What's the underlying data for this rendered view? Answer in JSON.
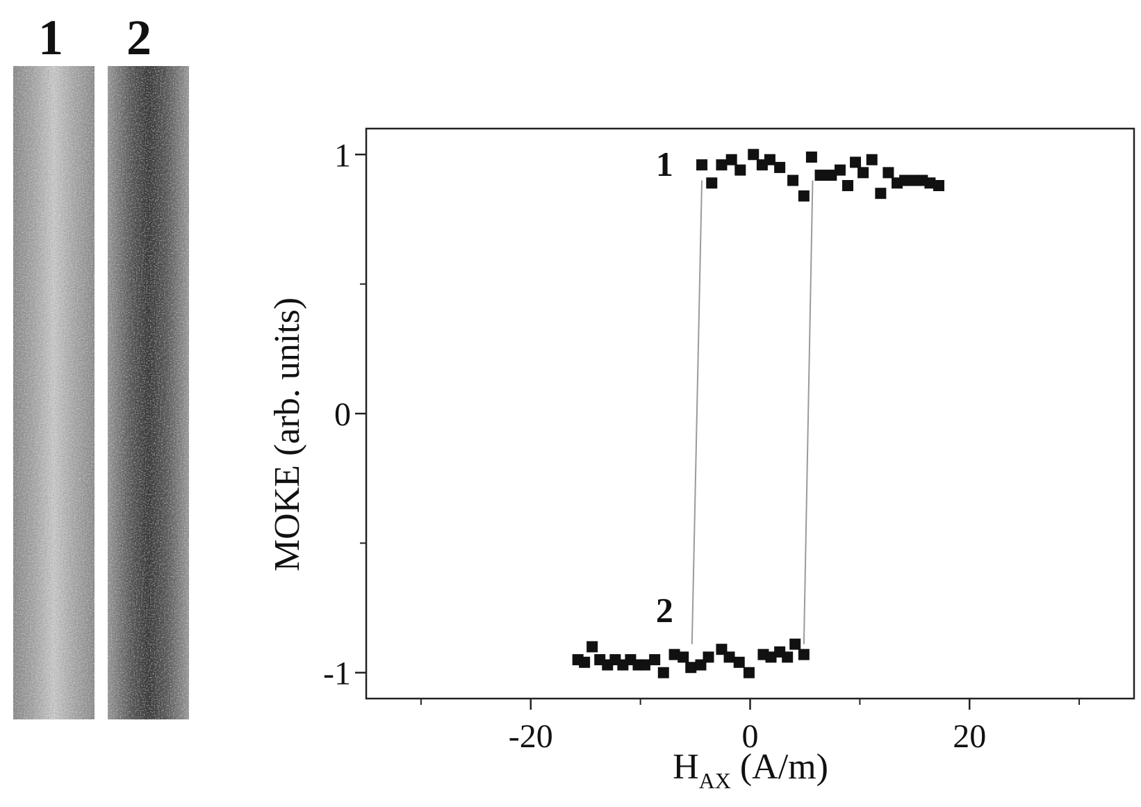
{
  "panel": {
    "strip_labels": [
      "1",
      "2"
    ]
  },
  "chart_data": {
    "type": "scatter",
    "xlabel": "H",
    "xlabel_sub": "AX",
    "xlabel_unit": " (A/m)",
    "ylabel": "MOKE (arb. units)",
    "xlim": [
      -35,
      35
    ],
    "ylim": [
      -1.1,
      1.1
    ],
    "xticks": [
      -20,
      0,
      20
    ],
    "yticks": [
      -1,
      0,
      1
    ],
    "xticks_minor": [
      -30,
      -10,
      10,
      30
    ],
    "yticks_minor": [
      -0.5,
      0.5
    ],
    "grid": false,
    "annotations": [
      {
        "text": "1",
        "x": -7.8,
        "y": 0.96
      },
      {
        "text": "2",
        "x": -7.8,
        "y": -0.76
      }
    ],
    "colors": {
      "marker": "#111111",
      "line": "#9a9a9a",
      "axis": "#222222"
    },
    "series": [
      {
        "x": [
          -4.4,
          -3.5,
          -2.6,
          -1.7,
          -0.9,
          0.3,
          1.1,
          1.8,
          2.7,
          3.9,
          4.9,
          5.6,
          6.4,
          7.4,
          8.2,
          8.9,
          9.6,
          10.3,
          11.1,
          11.9,
          12.6,
          13.4,
          14.1,
          14.9,
          15.7,
          16.4,
          17.2
        ],
        "y": [
          0.96,
          0.89,
          0.96,
          0.98,
          0.94,
          1.0,
          0.96,
          0.98,
          0.95,
          0.9,
          0.84,
          0.99,
          0.92,
          0.92,
          0.94,
          0.88,
          0.97,
          0.93,
          0.98,
          0.85,
          0.93,
          0.89,
          0.9,
          0.9,
          0.9,
          0.89,
          0.88
        ]
      },
      {
        "x": [
          -15.7,
          -15.1,
          -14.4,
          -13.7,
          -13.0,
          -12.3,
          -11.6,
          -10.9,
          -10.2,
          -9.6,
          -8.7,
          -7.9,
          -6.9,
          -6.1,
          -5.4,
          -4.5,
          -3.8,
          -2.6,
          -1.9,
          -1.0,
          -0.1,
          1.2,
          1.9,
          2.7,
          3.4,
          4.1,
          4.9
        ],
        "y": [
          -0.95,
          -0.96,
          -0.9,
          -0.95,
          -0.97,
          -0.95,
          -0.97,
          -0.95,
          -0.97,
          -0.97,
          -0.95,
          -1.0,
          -0.93,
          -0.94,
          -0.98,
          -0.97,
          -0.94,
          -0.91,
          -0.94,
          -0.96,
          -1.0,
          -0.93,
          -0.94,
          -0.92,
          -0.94,
          -0.89,
          -0.93
        ]
      }
    ],
    "switching_lines": [
      {
        "x": [
          -4.4,
          -5.3
        ],
        "y": [
          0.9,
          -0.89
        ]
      },
      {
        "x": [
          5.7,
          4.9
        ],
        "y": [
          0.9,
          -0.89
        ]
      }
    ]
  }
}
